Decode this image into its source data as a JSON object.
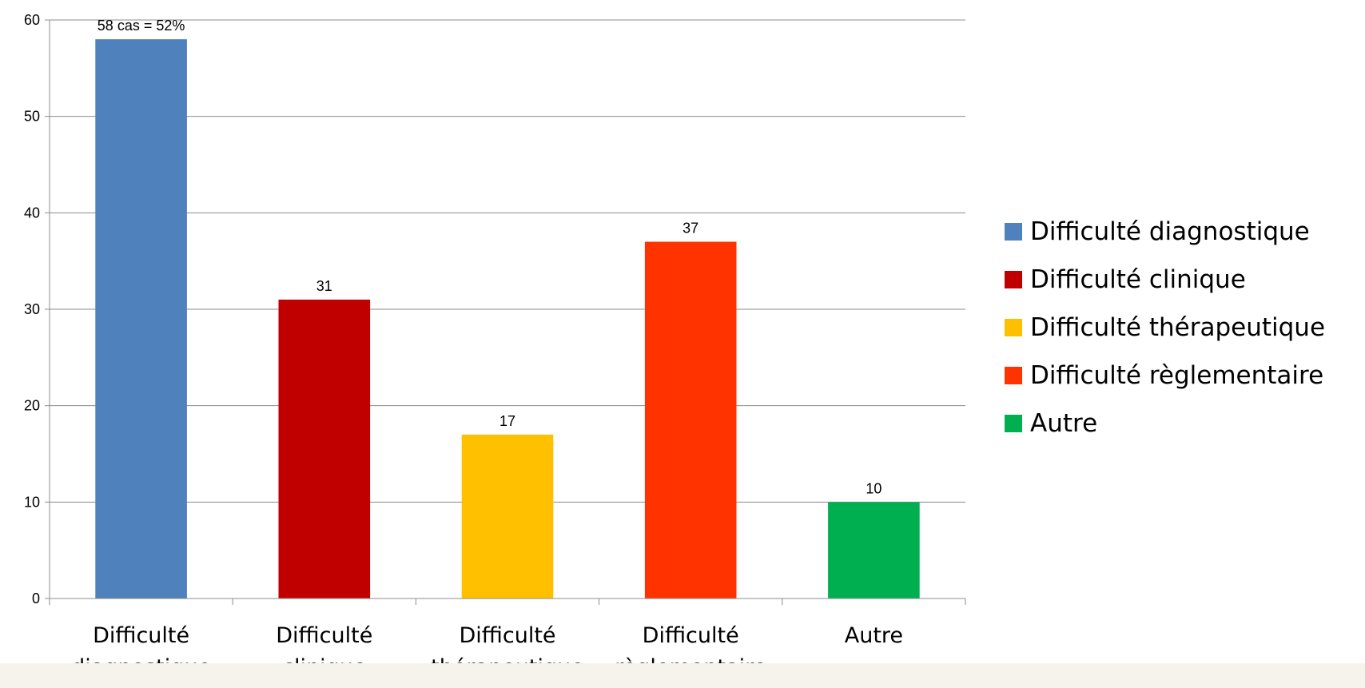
{
  "chart_data": {
    "type": "bar",
    "title": "",
    "xlabel": "",
    "ylabel": "",
    "ylim": [
      0,
      60
    ],
    "yticks": [
      0,
      10,
      20,
      30,
      40,
      50,
      60
    ],
    "grid": true,
    "legend_position": "right",
    "categories": [
      [
        "Difficulté",
        "diagnostique"
      ],
      [
        "Difficulté",
        "clinique"
      ],
      [
        "Difficulté",
        "thérapeutique"
      ],
      [
        "Difficulté",
        "règlementaire"
      ],
      [
        "Autre"
      ]
    ],
    "values": [
      58,
      31,
      17,
      37,
      10
    ],
    "data_labels": [
      "58 cas = 52%",
      "31",
      "17",
      "37",
      "10"
    ],
    "colors": [
      "#4f81bd",
      "#c00000",
      "#ffc000",
      "#ff3300",
      "#00b050"
    ],
    "legend": [
      "Difficulté diagnostique",
      "Difficulté clinique",
      "Difficulté thérapeutique",
      "Difficulté règlementaire",
      "Autre"
    ]
  }
}
